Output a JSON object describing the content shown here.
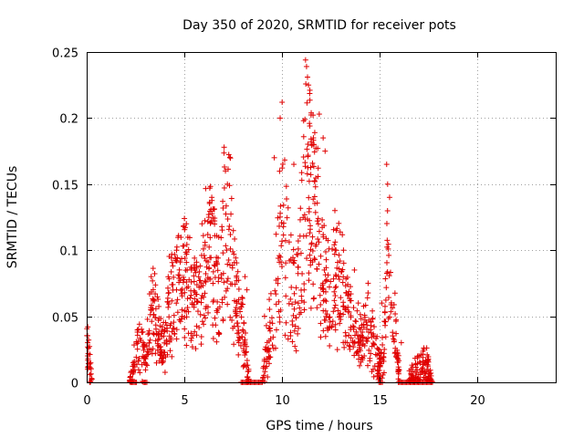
{
  "chart_data": {
    "type": "scatter",
    "title": "Day 350 of 2020, SRMTID for receiver pots",
    "xlabel": "GPS time / hours",
    "ylabel": "SRMTID / TECUs",
    "xlim": [
      0,
      24
    ],
    "ylim": [
      0,
      0.25
    ],
    "xticks": [
      0,
      5,
      10,
      15,
      20
    ],
    "yticks": [
      0,
      0.05,
      0.1,
      0.15,
      0.2,
      0.25
    ],
    "xtick_labels": [
      "0",
      "5",
      "10",
      "15",
      "20"
    ],
    "ytick_labels": [
      "0",
      "0.05",
      "0.1",
      "0.15",
      "0.2",
      "0.25"
    ],
    "grid": true,
    "marker": "plus",
    "color": "#e00000",
    "envelope": [
      [
        0.0,
        0.033
      ],
      [
        0.3,
        0.0
      ],
      [
        2.2,
        0.0
      ],
      [
        2.4,
        0.015
      ],
      [
        2.6,
        0.035
      ],
      [
        2.8,
        0.03
      ],
      [
        3.0,
        0.02
      ],
      [
        3.2,
        0.045
      ],
      [
        3.4,
        0.07
      ],
      [
        3.6,
        0.06
      ],
      [
        3.8,
        0.04
      ],
      [
        4.0,
        0.035
      ],
      [
        4.2,
        0.07
      ],
      [
        4.5,
        0.085
      ],
      [
        4.8,
        0.095
      ],
      [
        5.0,
        0.11
      ],
      [
        5.2,
        0.085
      ],
      [
        5.5,
        0.07
      ],
      [
        5.8,
        0.085
      ],
      [
        6.0,
        0.1
      ],
      [
        6.2,
        0.13
      ],
      [
        6.5,
        0.11
      ],
      [
        6.8,
        0.09
      ],
      [
        7.0,
        0.14
      ],
      [
        7.3,
        0.145
      ],
      [
        7.5,
        0.1
      ],
      [
        7.8,
        0.06
      ],
      [
        8.0,
        0.045
      ],
      [
        8.3,
        0.0
      ],
      [
        9.0,
        0.0
      ],
      [
        9.2,
        0.03
      ],
      [
        9.5,
        0.06
      ],
      [
        9.8,
        0.11
      ],
      [
        10.0,
        0.15
      ],
      [
        10.2,
        0.12
      ],
      [
        10.5,
        0.09
      ],
      [
        10.8,
        0.09
      ],
      [
        11.0,
        0.13
      ],
      [
        11.2,
        0.19
      ],
      [
        11.5,
        0.17
      ],
      [
        11.8,
        0.15
      ],
      [
        12.0,
        0.1
      ],
      [
        12.3,
        0.085
      ],
      [
        12.6,
        0.1
      ],
      [
        13.0,
        0.09
      ],
      [
        13.3,
        0.07
      ],
      [
        13.6,
        0.045
      ],
      [
        14.0,
        0.035
      ],
      [
        14.3,
        0.055
      ],
      [
        14.6,
        0.04
      ],
      [
        14.9,
        0.02
      ],
      [
        15.2,
        0.025
      ],
      [
        15.4,
        0.12
      ],
      [
        15.6,
        0.075
      ],
      [
        15.8,
        0.05
      ],
      [
        16.0,
        0.0
      ],
      [
        16.5,
        0.0
      ],
      [
        16.8,
        0.007
      ],
      [
        17.2,
        0.015
      ],
      [
        17.5,
        0.01
      ],
      [
        17.7,
        0.0
      ]
    ],
    "spikes": [
      [
        0.05,
        0.02
      ],
      [
        0.05,
        0.03
      ],
      [
        0.1,
        0.032
      ],
      [
        10.0,
        0.212
      ],
      [
        9.9,
        0.2
      ],
      [
        11.25,
        0.239
      ],
      [
        11.3,
        0.231
      ],
      [
        11.35,
        0.225
      ],
      [
        11.1,
        0.198
      ],
      [
        11.4,
        0.196
      ],
      [
        11.9,
        0.203
      ],
      [
        12.1,
        0.185
      ],
      [
        12.2,
        0.175
      ],
      [
        15.35,
        0.165
      ],
      [
        15.4,
        0.15
      ],
      [
        15.5,
        0.14
      ],
      [
        7.05,
        0.163
      ],
      [
        7.1,
        0.16
      ],
      [
        7.2,
        0.15
      ],
      [
        6.3,
        0.147
      ],
      [
        6.4,
        0.14
      ],
      [
        5.0,
        0.124
      ],
      [
        5.1,
        0.12
      ],
      [
        4.95,
        0.118
      ],
      [
        2.7,
        0.044
      ],
      [
        3.3,
        0.08
      ],
      [
        16.1,
        0.03
      ],
      [
        17.0,
        0.02
      ],
      [
        17.4,
        0.026
      ],
      [
        9.6,
        0.17
      ],
      [
        10.6,
        0.165
      ],
      [
        11.6,
        0.185
      ],
      [
        12.7,
        0.13
      ],
      [
        13.7,
        0.085
      ],
      [
        14.4,
        0.075
      ],
      [
        4.6,
        0.1
      ],
      [
        5.9,
        0.12
      ],
      [
        8.1,
        0.08
      ],
      [
        8.2,
        0.07
      ],
      [
        9.1,
        0.05
      ],
      [
        13.9,
        0.06
      ],
      [
        15.1,
        0.06
      ]
    ],
    "zeros": [
      [
        2.25,
        2.6
      ],
      [
        2.9,
        3.1
      ],
      [
        7.9,
        9.0
      ],
      [
        14.95,
        15.15
      ],
      [
        15.95,
        17.7
      ]
    ]
  }
}
